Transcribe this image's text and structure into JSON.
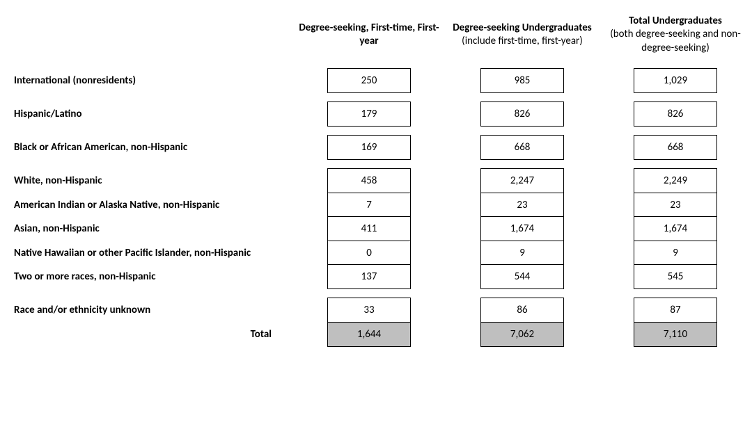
{
  "table": {
    "type": "table",
    "background_color": "#ffffff",
    "border_color": "#000000",
    "total_bg_color": "#bfbfbf",
    "text_color": "#000000",
    "font_family": "Calibri",
    "label_fontsize": 15,
    "cell_fontsize": 15,
    "header_fontsize": 15,
    "columns": [
      {
        "main": "Degree-seeking, First-time, First-year",
        "sub": ""
      },
      {
        "main": "Degree-seeking Undergraduates",
        "sub": "(include first-time, first-year)"
      },
      {
        "main": "Total Undergraduates",
        "sub": "(both degree-seeking and non-degree-seeking)"
      }
    ],
    "rows": [
      {
        "label": "International (nonresidents)",
        "values": [
          "250",
          "985",
          "1,029"
        ]
      },
      {
        "label": "Hispanic/Latino",
        "values": [
          "179",
          "826",
          "826"
        ]
      },
      {
        "label": "Black or African American, non-Hispanic",
        "values": [
          "169",
          "668",
          "668"
        ]
      },
      {
        "label": "White, non-Hispanic",
        "values": [
          "458",
          "2,247",
          "2,249"
        ]
      },
      {
        "label": "American Indian or Alaska Native, non-Hispanic",
        "values": [
          "7",
          "23",
          "23"
        ]
      },
      {
        "label": "Asian, non-Hispanic",
        "values": [
          "411",
          "1,674",
          "1,674"
        ]
      },
      {
        "label": "Native Hawaiian or other Pacific Islander, non-Hispanic",
        "values": [
          "0",
          "9",
          "9"
        ]
      },
      {
        "label": "Two or more races, non-Hispanic",
        "values": [
          "137",
          "544",
          "545"
        ]
      },
      {
        "label": "Race and/or ethnicity unknown",
        "values": [
          "33",
          "86",
          "87"
        ]
      }
    ],
    "total": {
      "label": "Total",
      "values": [
        "1,644",
        "7,062",
        "7,110"
      ]
    }
  }
}
